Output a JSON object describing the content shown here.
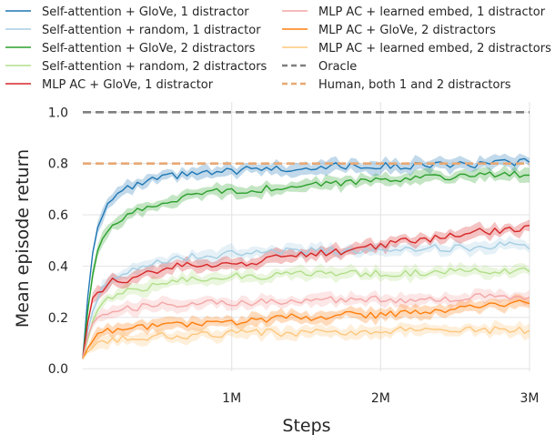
{
  "chart_data": {
    "type": "line",
    "title": "",
    "xlabel": "Steps",
    "ylabel": "Mean episode return",
    "xlim": [
      0,
      3
    ],
    "ylim": [
      -0.01,
      1.04
    ],
    "x_unit": "M steps",
    "xticks": [
      {
        "value": 1,
        "label": "1M"
      },
      {
        "value": 2,
        "label": "2M"
      },
      {
        "value": 3,
        "label": "3M"
      }
    ],
    "yticks": [
      {
        "value": 0.0,
        "label": "0.0"
      },
      {
        "value": 0.2,
        "label": "0.2"
      },
      {
        "value": 0.4,
        "label": "0.4"
      },
      {
        "value": 0.6,
        "label": "0.6"
      },
      {
        "value": 0.8,
        "label": "0.8"
      },
      {
        "value": 1.0,
        "label": "1.0"
      }
    ],
    "grid": true,
    "legend_position": "top, two columns",
    "x": [
      0,
      0.05,
      0.1,
      0.15,
      0.2,
      0.3,
      0.4,
      0.5,
      0.6,
      0.75,
      0.9,
      1.0,
      1.2,
      1.4,
      1.6,
      1.8,
      2.0,
      2.2,
      2.4,
      2.6,
      2.8,
      3.0
    ],
    "series": [
      {
        "name": "Self-attention + GloVe, 1 distractor",
        "color": "#1f77b4",
        "style": "solid",
        "band": true,
        "values": [
          0.04,
          0.4,
          0.56,
          0.63,
          0.67,
          0.7,
          0.72,
          0.74,
          0.75,
          0.76,
          0.76,
          0.77,
          0.78,
          0.78,
          0.79,
          0.79,
          0.79,
          0.79,
          0.8,
          0.79,
          0.8,
          0.81
        ]
      },
      {
        "name": "Self-attention + random, 1 distractor",
        "color": "#a6cee3",
        "style": "solid",
        "band": true,
        "values": [
          0.04,
          0.2,
          0.28,
          0.33,
          0.36,
          0.38,
          0.4,
          0.42,
          0.43,
          0.44,
          0.44,
          0.45,
          0.45,
          0.46,
          0.46,
          0.46,
          0.47,
          0.47,
          0.47,
          0.47,
          0.48,
          0.48
        ]
      },
      {
        "name": "Self-attention + GloVe, 2 distractors",
        "color": "#2ca02c",
        "style": "solid",
        "band": true,
        "values": [
          0.04,
          0.32,
          0.45,
          0.52,
          0.56,
          0.6,
          0.62,
          0.64,
          0.66,
          0.68,
          0.69,
          0.69,
          0.7,
          0.71,
          0.72,
          0.73,
          0.74,
          0.74,
          0.75,
          0.75,
          0.76,
          0.76
        ]
      },
      {
        "name": "Self-attention + random, 2 distractors",
        "color": "#b2df8a",
        "style": "solid",
        "band": true,
        "values": [
          0.04,
          0.15,
          0.22,
          0.26,
          0.28,
          0.3,
          0.31,
          0.33,
          0.34,
          0.35,
          0.36,
          0.36,
          0.36,
          0.37,
          0.37,
          0.37,
          0.37,
          0.37,
          0.38,
          0.38,
          0.38,
          0.38
        ]
      },
      {
        "name": "MLP AC + GloVe, 1 distractor",
        "color": "#d62728",
        "style": "solid",
        "band": true,
        "values": [
          0.04,
          0.25,
          0.3,
          0.32,
          0.34,
          0.35,
          0.37,
          0.38,
          0.4,
          0.4,
          0.41,
          0.41,
          0.42,
          0.44,
          0.45,
          0.46,
          0.48,
          0.5,
          0.51,
          0.53,
          0.54,
          0.55
        ]
      },
      {
        "name": "MLP AC + learned embed, 1 distractor",
        "color": "#f4a6a6",
        "style": "solid",
        "band": true,
        "values": [
          0.04,
          0.17,
          0.2,
          0.22,
          0.23,
          0.24,
          0.24,
          0.25,
          0.25,
          0.26,
          0.26,
          0.26,
          0.26,
          0.26,
          0.27,
          0.27,
          0.27,
          0.27,
          0.27,
          0.28,
          0.28,
          0.28
        ]
      },
      {
        "name": "MLP AC + GloVe, 2 distractors",
        "color": "#ff7f0e",
        "style": "solid",
        "band": true,
        "values": [
          0.04,
          0.1,
          0.13,
          0.15,
          0.15,
          0.16,
          0.16,
          0.17,
          0.17,
          0.17,
          0.18,
          0.18,
          0.19,
          0.2,
          0.2,
          0.21,
          0.21,
          0.22,
          0.23,
          0.24,
          0.25,
          0.26
        ]
      },
      {
        "name": "MLP AC + learned embed, 2 distractors",
        "color": "#fdc77d",
        "style": "solid",
        "band": true,
        "values": [
          0.04,
          0.08,
          0.1,
          0.11,
          0.11,
          0.12,
          0.12,
          0.13,
          0.13,
          0.13,
          0.13,
          0.14,
          0.14,
          0.14,
          0.14,
          0.14,
          0.15,
          0.15,
          0.15,
          0.15,
          0.15,
          0.15
        ]
      },
      {
        "name": "Oracle",
        "color": "#7f7f7f",
        "style": "dashed",
        "band": false,
        "values": [
          1.0,
          1.0,
          1.0,
          1.0,
          1.0,
          1.0,
          1.0,
          1.0,
          1.0,
          1.0,
          1.0,
          1.0,
          1.0,
          1.0,
          1.0,
          1.0,
          1.0,
          1.0,
          1.0,
          1.0,
          1.0,
          1.0
        ]
      },
      {
        "name": "Human, both 1 and 2 distractors",
        "color": "#e8a873",
        "style": "dashed",
        "band": false,
        "values": [
          0.8,
          0.8,
          0.8,
          0.8,
          0.8,
          0.8,
          0.8,
          0.8,
          0.8,
          0.8,
          0.8,
          0.8,
          0.8,
          0.8,
          0.8,
          0.8,
          0.8,
          0.8,
          0.8,
          0.8,
          0.8,
          0.8
        ]
      }
    ]
  }
}
